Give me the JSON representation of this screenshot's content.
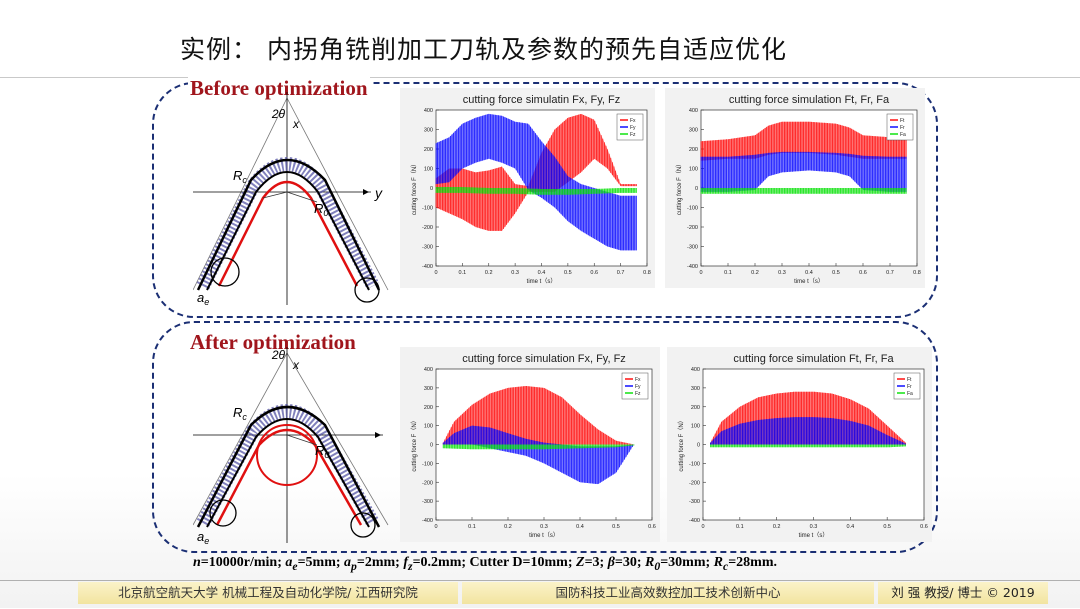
{
  "slide": {
    "title": "实例： 内拐角铣削加工刀轨及参数的预先自适应优化",
    "before_label": "Before optimization",
    "after_label": "After optimization",
    "params": "n=10000r/min; ae=5mm; ap=2mm; fz=0.2mm; Cutter D=10mm; Z=3; β=30; R0=30mm; Rc=28mm."
  },
  "params_parts": {
    "n": "n",
    "n_val": "=10000r/min; ",
    "a": "a",
    "ae_sub": "e",
    "ae_val": "=5mm; ",
    "ap_sub": "p",
    "ap_val": "=2mm; ",
    "f": "f",
    "fz_sub": "z",
    "fz_val": "=0.2mm; Cutter D=10mm; ",
    "Z": "Z",
    "Z_val": "=3; ",
    "beta": "β",
    "beta_val": "=30; ",
    "R": "R",
    "R0_sub": "0",
    "R0_val": "=30mm; ",
    "Rc_sub": "c",
    "Rc_val": "=28mm."
  },
  "diagram_labels": {
    "angle": "2θ",
    "x": "x",
    "y": "y",
    "rc": "R",
    "rc_sub": "c",
    "r0": "R",
    "r0_sub": "0",
    "ae": "a",
    "ae_sub": "e"
  },
  "footer": {
    "left": "北京航空航天大学 机械工程及自动化学院/ 江西研究院",
    "middle": "国防科技工业高效数控加工技术创新中心",
    "right": "刘 强 教授/ 博士 © 2019"
  },
  "colors": {
    "red": "#ff0000",
    "blue": "#0000ff",
    "green": "#00e000",
    "border": "#1b2f74",
    "label": "#a0151c"
  },
  "chart_data": [
    {
      "type": "area",
      "title": "cutting force simulatin Fx, Fy, Fz",
      "xlabel": "time t（s）",
      "ylabel": "cutting force F（N）",
      "xlim": [
        0,
        0.8
      ],
      "ylim": [
        -400,
        400
      ],
      "xticks": [
        0,
        0.1,
        0.2,
        0.3,
        0.4,
        0.5,
        0.6,
        0.7,
        0.8
      ],
      "yticks": [
        -400,
        -300,
        -200,
        -100,
        0,
        100,
        200,
        300,
        400
      ],
      "legend": "top-right",
      "series": [
        {
          "name": "Fx",
          "color": "#ff0000",
          "x": [
            0,
            0.05,
            0.1,
            0.15,
            0.2,
            0.25,
            0.3,
            0.35,
            0.4,
            0.45,
            0.5,
            0.55,
            0.6,
            0.65,
            0.7,
            0.76
          ],
          "upper": [
            50,
            100,
            100,
            80,
            90,
            110,
            20,
            10,
            180,
            300,
            360,
            380,
            350,
            200,
            20,
            20
          ],
          "lower": [
            -100,
            -130,
            -160,
            -200,
            -220,
            -220,
            -130,
            -20,
            -20,
            -20,
            30,
            80,
            150,
            100,
            10,
            10
          ]
        },
        {
          "name": "Fy",
          "color": "#0000ff",
          "x": [
            0,
            0.05,
            0.1,
            0.15,
            0.2,
            0.25,
            0.3,
            0.35,
            0.4,
            0.45,
            0.5,
            0.55,
            0.6,
            0.65,
            0.7,
            0.76
          ],
          "upper": [
            230,
            260,
            330,
            360,
            380,
            370,
            340,
            330,
            240,
            160,
            60,
            20,
            0,
            -20,
            -40,
            -40
          ],
          "lower": [
            20,
            30,
            100,
            130,
            150,
            130,
            100,
            -10,
            -50,
            -100,
            -170,
            -220,
            -260,
            -300,
            -320,
            -320
          ]
        },
        {
          "name": "Fz",
          "color": "#00e000",
          "x": [
            0,
            0.1,
            0.2,
            0.3,
            0.4,
            0.5,
            0.6,
            0.7,
            0.76
          ],
          "upper": [
            5,
            5,
            0,
            0,
            -5,
            -5,
            -5,
            0,
            0
          ],
          "lower": [
            -25,
            -25,
            -30,
            -30,
            -35,
            -35,
            -30,
            -25,
            -25
          ]
        }
      ]
    },
    {
      "type": "area",
      "title": "cutting force simulation Ft, Fr, Fa",
      "xlabel": "time t（s）",
      "ylabel": "cutting force F（N）",
      "xlim": [
        0,
        0.8
      ],
      "ylim": [
        -400,
        400
      ],
      "xticks": [
        0,
        0.1,
        0.2,
        0.3,
        0.4,
        0.5,
        0.6,
        0.7,
        0.8
      ],
      "yticks": [
        -400,
        -300,
        -200,
        -100,
        0,
        100,
        200,
        300,
        400
      ],
      "legend": "top-right",
      "series": [
        {
          "name": "Ft",
          "color": "#ff0000",
          "x": [
            0,
            0.1,
            0.2,
            0.25,
            0.3,
            0.4,
            0.5,
            0.55,
            0.6,
            0.7,
            0.76
          ],
          "upper": [
            240,
            250,
            270,
            320,
            340,
            340,
            330,
            310,
            270,
            260,
            260
          ],
          "lower": [
            140,
            150,
            150,
            170,
            180,
            180,
            170,
            160,
            150,
            150,
            150
          ]
        },
        {
          "name": "Fr",
          "color": "#0000ff",
          "x": [
            0,
            0.1,
            0.2,
            0.25,
            0.3,
            0.4,
            0.5,
            0.55,
            0.6,
            0.7,
            0.76
          ],
          "upper": [
            160,
            160,
            170,
            180,
            185,
            185,
            180,
            175,
            165,
            160,
            160
          ],
          "lower": [
            -20,
            -20,
            -10,
            60,
            80,
            90,
            80,
            60,
            -10,
            -20,
            -20
          ]
        },
        {
          "name": "Fa",
          "color": "#00e000",
          "x": [
            0,
            0.1,
            0.2,
            0.3,
            0.4,
            0.5,
            0.6,
            0.7,
            0.76
          ],
          "upper": [
            0,
            0,
            0,
            0,
            0,
            0,
            0,
            0,
            0
          ],
          "lower": [
            -30,
            -30,
            -30,
            -30,
            -30,
            -30,
            -30,
            -30,
            -30
          ]
        }
      ]
    },
    {
      "type": "area",
      "title": "cutting force simulation Fx, Fy, Fz",
      "xlabel": "time t（s）",
      "ylabel": "cutting force F（N）",
      "xlim": [
        0,
        0.6
      ],
      "ylim": [
        -400,
        400
      ],
      "xticks": [
        0,
        0.1,
        0.2,
        0.3,
        0.4,
        0.5,
        0.6
      ],
      "yticks": [
        -400,
        -300,
        -200,
        -100,
        0,
        100,
        200,
        300,
        400
      ],
      "legend": "top-right",
      "series": [
        {
          "name": "Fx",
          "color": "#ff0000",
          "x": [
            0.02,
            0.05,
            0.1,
            0.15,
            0.2,
            0.25,
            0.3,
            0.35,
            0.4,
            0.45,
            0.5,
            0.55
          ],
          "upper": [
            10,
            120,
            210,
            270,
            300,
            310,
            300,
            250,
            160,
            80,
            20,
            0
          ],
          "lower": [
            0,
            0,
            0,
            0,
            0,
            0,
            0,
            0,
            0,
            0,
            0,
            0
          ]
        },
        {
          "name": "Fy",
          "color": "#0000ff",
          "x": [
            0.02,
            0.05,
            0.1,
            0.15,
            0.2,
            0.25,
            0.3,
            0.35,
            0.4,
            0.45,
            0.5,
            0.55
          ],
          "upper": [
            10,
            60,
            100,
            90,
            60,
            30,
            10,
            0,
            -10,
            -10,
            -10,
            0
          ],
          "lower": [
            0,
            0,
            0,
            -20,
            -40,
            -60,
            -100,
            -150,
            -200,
            -210,
            -150,
            0
          ]
        },
        {
          "name": "Fz",
          "color": "#00e000",
          "x": [
            0.02,
            0.1,
            0.2,
            0.3,
            0.4,
            0.5,
            0.55
          ],
          "upper": [
            0,
            0,
            0,
            0,
            0,
            0,
            0
          ],
          "lower": [
            -20,
            -25,
            -25,
            -25,
            -20,
            -15,
            -5
          ]
        }
      ]
    },
    {
      "type": "area",
      "title": "cutting force simulation Ft, Fr, Fa",
      "xlabel": "time t（s）",
      "ylabel": "cutting force F（N）",
      "xlim": [
        0,
        0.6
      ],
      "ylim": [
        -400,
        400
      ],
      "xticks": [
        0,
        0.1,
        0.2,
        0.3,
        0.4,
        0.5,
        0.6
      ],
      "yticks": [
        -400,
        -300,
        -200,
        -100,
        0,
        100,
        200,
        300,
        400
      ],
      "legend": "top-right",
      "series": [
        {
          "name": "Ft",
          "color": "#ff0000",
          "x": [
            0.02,
            0.05,
            0.1,
            0.15,
            0.2,
            0.25,
            0.3,
            0.35,
            0.4,
            0.45,
            0.5,
            0.55
          ],
          "upper": [
            10,
            120,
            200,
            250,
            270,
            280,
            280,
            270,
            240,
            190,
            100,
            10
          ],
          "lower": [
            0,
            0,
            0,
            0,
            0,
            0,
            0,
            0,
            0,
            0,
            0,
            0
          ]
        },
        {
          "name": "Fr",
          "color": "#0000ff",
          "x": [
            0.02,
            0.05,
            0.1,
            0.15,
            0.2,
            0.25,
            0.3,
            0.35,
            0.4,
            0.45,
            0.5,
            0.55
          ],
          "upper": [
            10,
            70,
            110,
            130,
            140,
            145,
            145,
            140,
            125,
            100,
            50,
            5
          ],
          "lower": [
            0,
            0,
            0,
            0,
            0,
            0,
            0,
            0,
            0,
            0,
            0,
            0
          ]
        },
        {
          "name": "Fa",
          "color": "#00e000",
          "x": [
            0.02,
            0.1,
            0.2,
            0.3,
            0.4,
            0.5,
            0.55
          ],
          "upper": [
            0,
            0,
            0,
            0,
            0,
            0,
            0
          ],
          "lower": [
            -15,
            -15,
            -15,
            -15,
            -15,
            -15,
            -10
          ]
        }
      ]
    }
  ]
}
